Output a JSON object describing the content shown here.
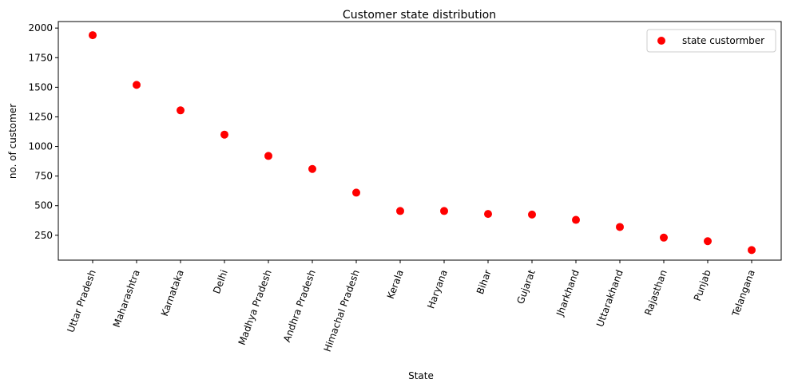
{
  "chart_data": {
    "type": "scatter",
    "title": "Customer state distribution",
    "xlabel": "State",
    "ylabel": "no. of customer",
    "categories": [
      "Uttar Pradesh",
      "Maharashtra",
      "Karnataka",
      "Delhi",
      "Madhya Pradesh",
      "Andhra Pradesh",
      "Himachal Pradesh",
      "Kerala",
      "Haryana",
      "Bihar",
      "Gujarat",
      "Jharkhand",
      "Uttarakhand",
      "Rajasthan",
      "Punjab",
      "Telangana"
    ],
    "series": [
      {
        "name": "state custormber",
        "color": "#ff0000",
        "values": [
          1940,
          1520,
          1305,
          1100,
          920,
          810,
          610,
          455,
          455,
          430,
          425,
          380,
          320,
          230,
          200,
          125
        ]
      }
    ],
    "yticks": [
      250,
      500,
      750,
      1000,
      1250,
      1500,
      1750,
      2000
    ],
    "ylim": [
      40,
      2055
    ],
    "legend": "top-right",
    "grid": false
  }
}
